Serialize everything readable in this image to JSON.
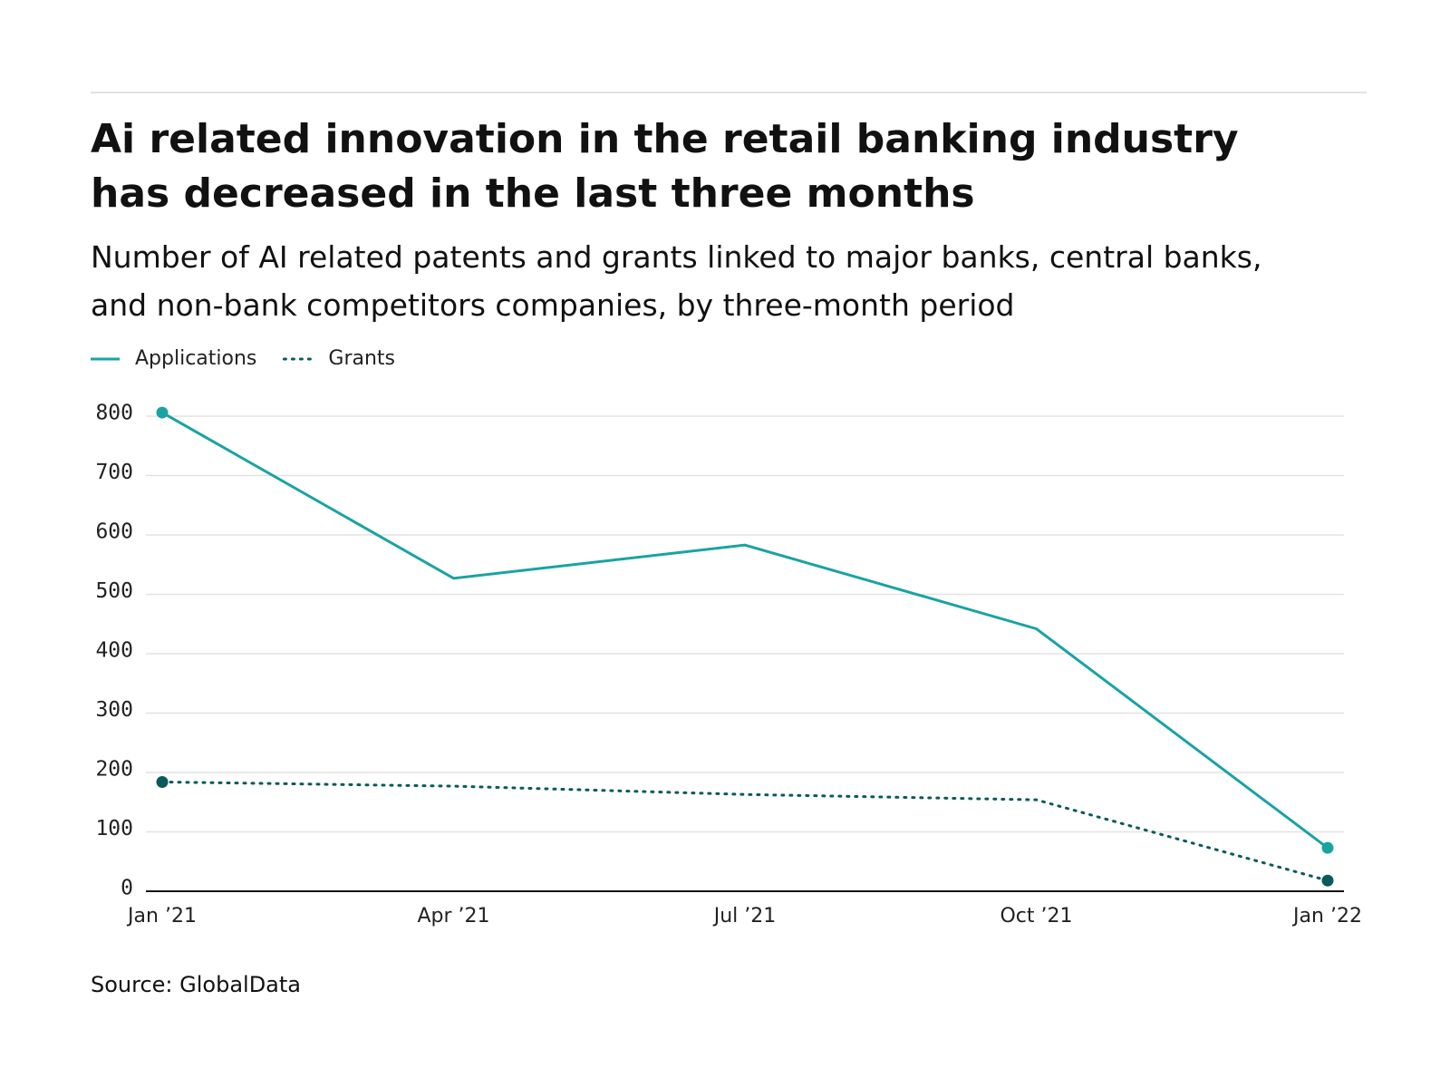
{
  "chart_data": {
    "type": "line",
    "title": "Ai related innovation in the retail banking industry has decreased in the last three months",
    "subtitle": "Number of AI related patents and grants linked to major banks, central banks, and non-bank competitors companies, by three-month period",
    "source": "Source: GlobalData",
    "categories": [
      "Jan ’21",
      "Apr ’21",
      "Jul ’21",
      "Oct ’21",
      "Jan ’22"
    ],
    "series": [
      {
        "name": "Applications",
        "color": "#1aa3a3",
        "style": "solid",
        "values": [
          806,
          527,
          583,
          442,
          73
        ]
      },
      {
        "name": "Grants",
        "color": "#0b5a5a",
        "style": "dotted",
        "values": [
          184,
          177,
          163,
          154,
          18
        ]
      }
    ],
    "ylim": [
      0,
      800
    ],
    "yticks": [
      0,
      100,
      200,
      300,
      400,
      500,
      600,
      700,
      800
    ],
    "grid": true
  }
}
